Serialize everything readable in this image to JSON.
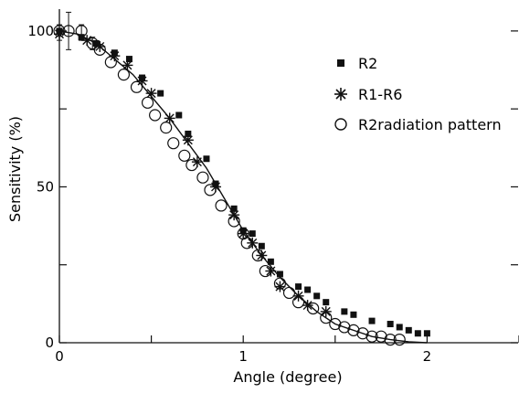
{
  "chart_data": {
    "type": "scatter",
    "title": "",
    "xlabel": "Angle (degree)",
    "ylabel": "Sensitivity (%)",
    "xlim": [
      0,
      2.5
    ],
    "ylim": [
      0,
      107
    ],
    "xticks": [
      0,
      0.5,
      1,
      1.5,
      2,
      2.5
    ],
    "xtick_labels": [
      "0",
      "",
      "1",
      "",
      "2",
      ""
    ],
    "yticks": [
      0,
      25,
      50,
      75,
      100
    ],
    "ytick_labels": [
      "0",
      "",
      "50",
      "",
      "100"
    ],
    "grid": false,
    "legend_position": "top-right",
    "series": [
      {
        "name": "R2",
        "marker": "filled-square",
        "x": [
          0.0,
          0.12,
          0.2,
          0.3,
          0.38,
          0.45,
          0.55,
          0.65,
          0.7,
          0.8,
          0.85,
          0.95,
          1.0,
          1.05,
          1.1,
          1.15,
          1.2,
          1.3,
          1.35,
          1.4,
          1.45,
          1.55,
          1.6,
          1.7,
          1.8,
          1.85,
          1.9,
          1.95,
          2.0
        ],
        "y": [
          100,
          98,
          96,
          93,
          91,
          85,
          80,
          73,
          67,
          59,
          51,
          43,
          36,
          35,
          31,
          26,
          22,
          18,
          17,
          15,
          13,
          10,
          9,
          7,
          6,
          5,
          4,
          3,
          3
        ]
      },
      {
        "name": "R1-R6",
        "marker": "asterisk",
        "x": [
          0.0,
          0.15,
          0.22,
          0.3,
          0.37,
          0.45,
          0.5,
          0.6,
          0.7,
          0.75,
          0.85,
          0.95,
          1.0,
          1.05,
          1.1,
          1.15,
          1.2,
          1.3,
          1.35,
          1.45
        ],
        "y": [
          99,
          97,
          95,
          92,
          89,
          84,
          80,
          72,
          65,
          58,
          50,
          41,
          35,
          32,
          28,
          23,
          18,
          15,
          12,
          10
        ]
      },
      {
        "name": "R2radiation pattern",
        "marker": "open-circle",
        "x": [
          0.0,
          0.05,
          0.12,
          0.18,
          0.22,
          0.28,
          0.35,
          0.42,
          0.48,
          0.52,
          0.58,
          0.62,
          0.68,
          0.72,
          0.78,
          0.82,
          0.88,
          0.95,
          1.0,
          1.02,
          1.08,
          1.12,
          1.2,
          1.25,
          1.3,
          1.38,
          1.45,
          1.5,
          1.55,
          1.6,
          1.65,
          1.7,
          1.75,
          1.8,
          1.85
        ],
        "y": [
          100,
          100,
          100,
          96,
          94,
          90,
          86,
          82,
          77,
          73,
          69,
          64,
          60,
          57,
          53,
          49,
          44,
          39,
          35,
          32,
          28,
          23,
          19,
          16,
          13,
          11,
          8,
          6,
          5,
          4,
          3,
          2,
          2,
          1,
          1
        ]
      }
    ],
    "error_bars": [
      {
        "x": 0.0,
        "y": 100,
        "low": 97,
        "high": 102
      },
      {
        "x": 0.05,
        "y": 100,
        "low": 94,
        "high": 106
      },
      {
        "x": 0.12,
        "y": 100,
        "low": 97,
        "high": 102
      },
      {
        "x": 0.18,
        "y": 96,
        "low": 94,
        "high": 98
      }
    ],
    "fit_curve": {
      "x": [
        0.0,
        0.1,
        0.2,
        0.3,
        0.4,
        0.5,
        0.6,
        0.7,
        0.8,
        0.9,
        1.0,
        1.1,
        1.2,
        1.3,
        1.4,
        1.5,
        1.6,
        1.7,
        1.8,
        1.9,
        2.0
      ],
      "y": [
        100,
        99,
        96,
        91,
        86,
        79,
        72,
        64,
        56,
        46,
        36,
        28,
        21,
        15,
        10,
        6,
        4,
        2,
        1,
        0.3,
        0
      ]
    }
  }
}
